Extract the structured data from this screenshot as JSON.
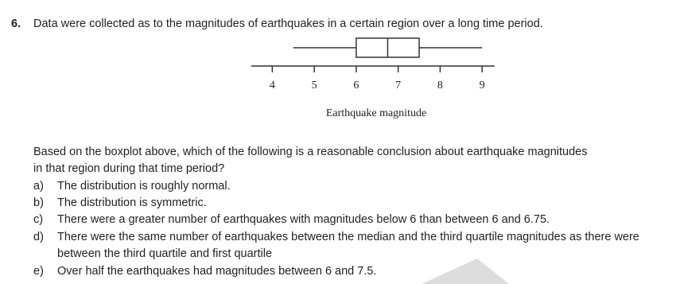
{
  "question": {
    "number": "6.",
    "text": "Data were collected as to the magnitudes of earthquakes in a certain region over a long time period."
  },
  "chart_data": {
    "type": "box",
    "xlabel": "Earthquake magnitude",
    "xlim": [
      3.5,
      9.3
    ],
    "xticks": [
      4,
      5,
      6,
      7,
      8,
      9
    ],
    "whisker_low": 4.5,
    "q1": 6,
    "median": 6.75,
    "q3": 7.5,
    "whisker_high": 9
  },
  "prompt": "Based on the boxplot above, which of the following is a reasonable conclusion about earthquake magnitudes in that region during that time period?",
  "options": [
    {
      "letter": "a)",
      "text": "The distribution is roughly normal."
    },
    {
      "letter": "b)",
      "text": "The distribution is symmetric."
    },
    {
      "letter": "c)",
      "text": "There were a greater number of earthquakes with magnitudes below 6 than between 6 and 6.75."
    },
    {
      "letter": "d)",
      "text": "There were the same number of earthquakes between the median and the third quartile magnitudes as there were between the third quartile and first quartile"
    },
    {
      "letter": "e)",
      "text": "Over half the earthquakes had magnitudes between 6 and 7.5."
    }
  ]
}
